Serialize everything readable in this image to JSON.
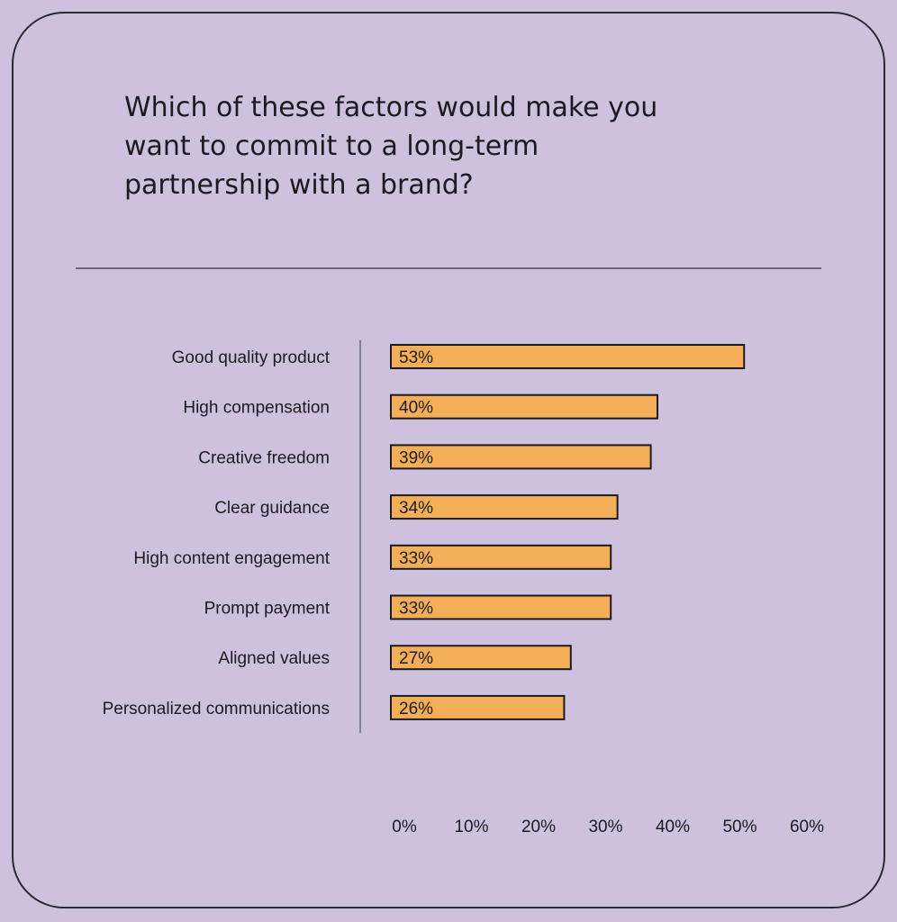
{
  "chart_data": {
    "type": "bar",
    "orientation": "horizontal",
    "title": "Which of these factors would make you want to commit to a long-term partnership with a brand?",
    "categories": [
      "Good quality product",
      "High compensation",
      "Creative freedom",
      "Clear guidance",
      "High content engagement",
      "Prompt payment",
      "Aligned values",
      "Personalized communications"
    ],
    "values": [
      53,
      40,
      39,
      34,
      33,
      33,
      27,
      26
    ],
    "value_labels": [
      "53%",
      "40%",
      "39%",
      "34%",
      "33%",
      "33%",
      "27%",
      "26%"
    ],
    "xlim": [
      0,
      60
    ],
    "x_ticks": [
      "0%",
      "10%",
      "20%",
      "30%",
      "40%",
      "50%",
      "60%"
    ],
    "grid": false,
    "colors": {
      "bar_fill": "#f4ae57",
      "bar_stroke": "#1b1b1f",
      "background": "#cdc1dd",
      "text": "#1b1b1f",
      "divider": "#6b6a72"
    }
  }
}
